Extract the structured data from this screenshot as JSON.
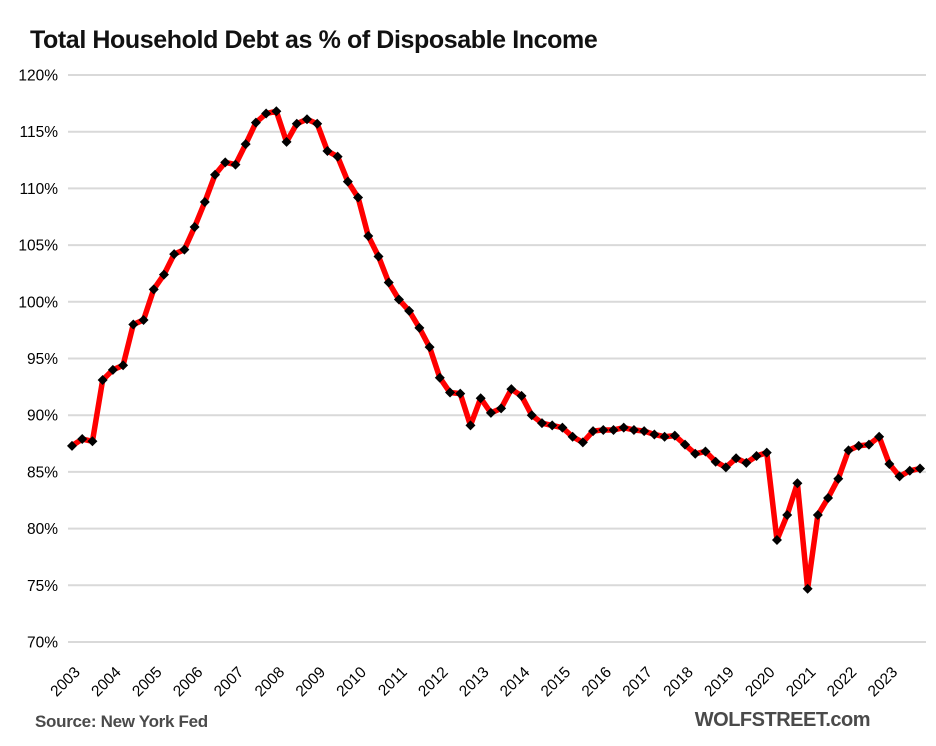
{
  "header": {
    "title": "Total Household Debt as % of Disposable Income"
  },
  "footer": {
    "source": "Source: New York Fed",
    "brand": "WOLFSTREET.com"
  },
  "chart_data": {
    "type": "line",
    "title": "Total Household Debt as % of Disposable Income",
    "xlabel": "",
    "ylabel": "",
    "ylim": [
      70,
      120
    ],
    "ytick_step": 5,
    "ytick_format": "percent",
    "grid": "horizontal-only",
    "legend": "none",
    "x_frequency": "quarterly",
    "x_start": "2003 Q1",
    "x_end": "2023 Q4",
    "x_tick_labels": [
      "2003",
      "2004",
      "2005",
      "2006",
      "2007",
      "2008",
      "2009",
      "2010",
      "2011",
      "2012",
      "2013",
      "2014",
      "2015",
      "2016",
      "2017",
      "2018",
      "2019",
      "2020",
      "2021",
      "2022",
      "2023"
    ],
    "series": [
      {
        "name": "Total household debt as % of disposable income",
        "line_color": "#ff0000",
        "marker": "diamond",
        "marker_color": "#000000",
        "values": [
          87.3,
          87.9,
          87.7,
          93.1,
          94.0,
          94.4,
          98.0,
          98.4,
          101.1,
          102.4,
          104.2,
          104.6,
          106.6,
          108.8,
          111.2,
          112.3,
          112.1,
          113.9,
          115.8,
          116.6,
          116.8,
          114.1,
          115.7,
          116.1,
          115.7,
          113.3,
          112.8,
          110.6,
          109.2,
          105.8,
          104.0,
          101.7,
          100.2,
          99.2,
          97.7,
          96.0,
          93.3,
          92.0,
          91.9,
          89.1,
          91.5,
          90.2,
          90.6,
          92.3,
          91.7,
          90.0,
          89.3,
          89.1,
          88.9,
          88.1,
          87.6,
          88.6,
          88.7,
          88.7,
          88.9,
          88.7,
          88.6,
          88.3,
          88.1,
          88.2,
          87.4,
          86.6,
          86.8,
          85.9,
          85.4,
          86.2,
          85.8,
          86.4,
          86.7,
          79.0,
          81.2,
          84.0,
          74.7,
          81.2,
          82.7,
          84.4,
          86.9,
          87.3,
          87.4,
          88.1,
          85.7,
          84.6,
          85.1,
          85.3
        ]
      }
    ],
    "colors": {
      "gridline": "#d9d9d9",
      "axis_text": "#000000",
      "line": "#ff0000",
      "marker": "#000000"
    }
  }
}
